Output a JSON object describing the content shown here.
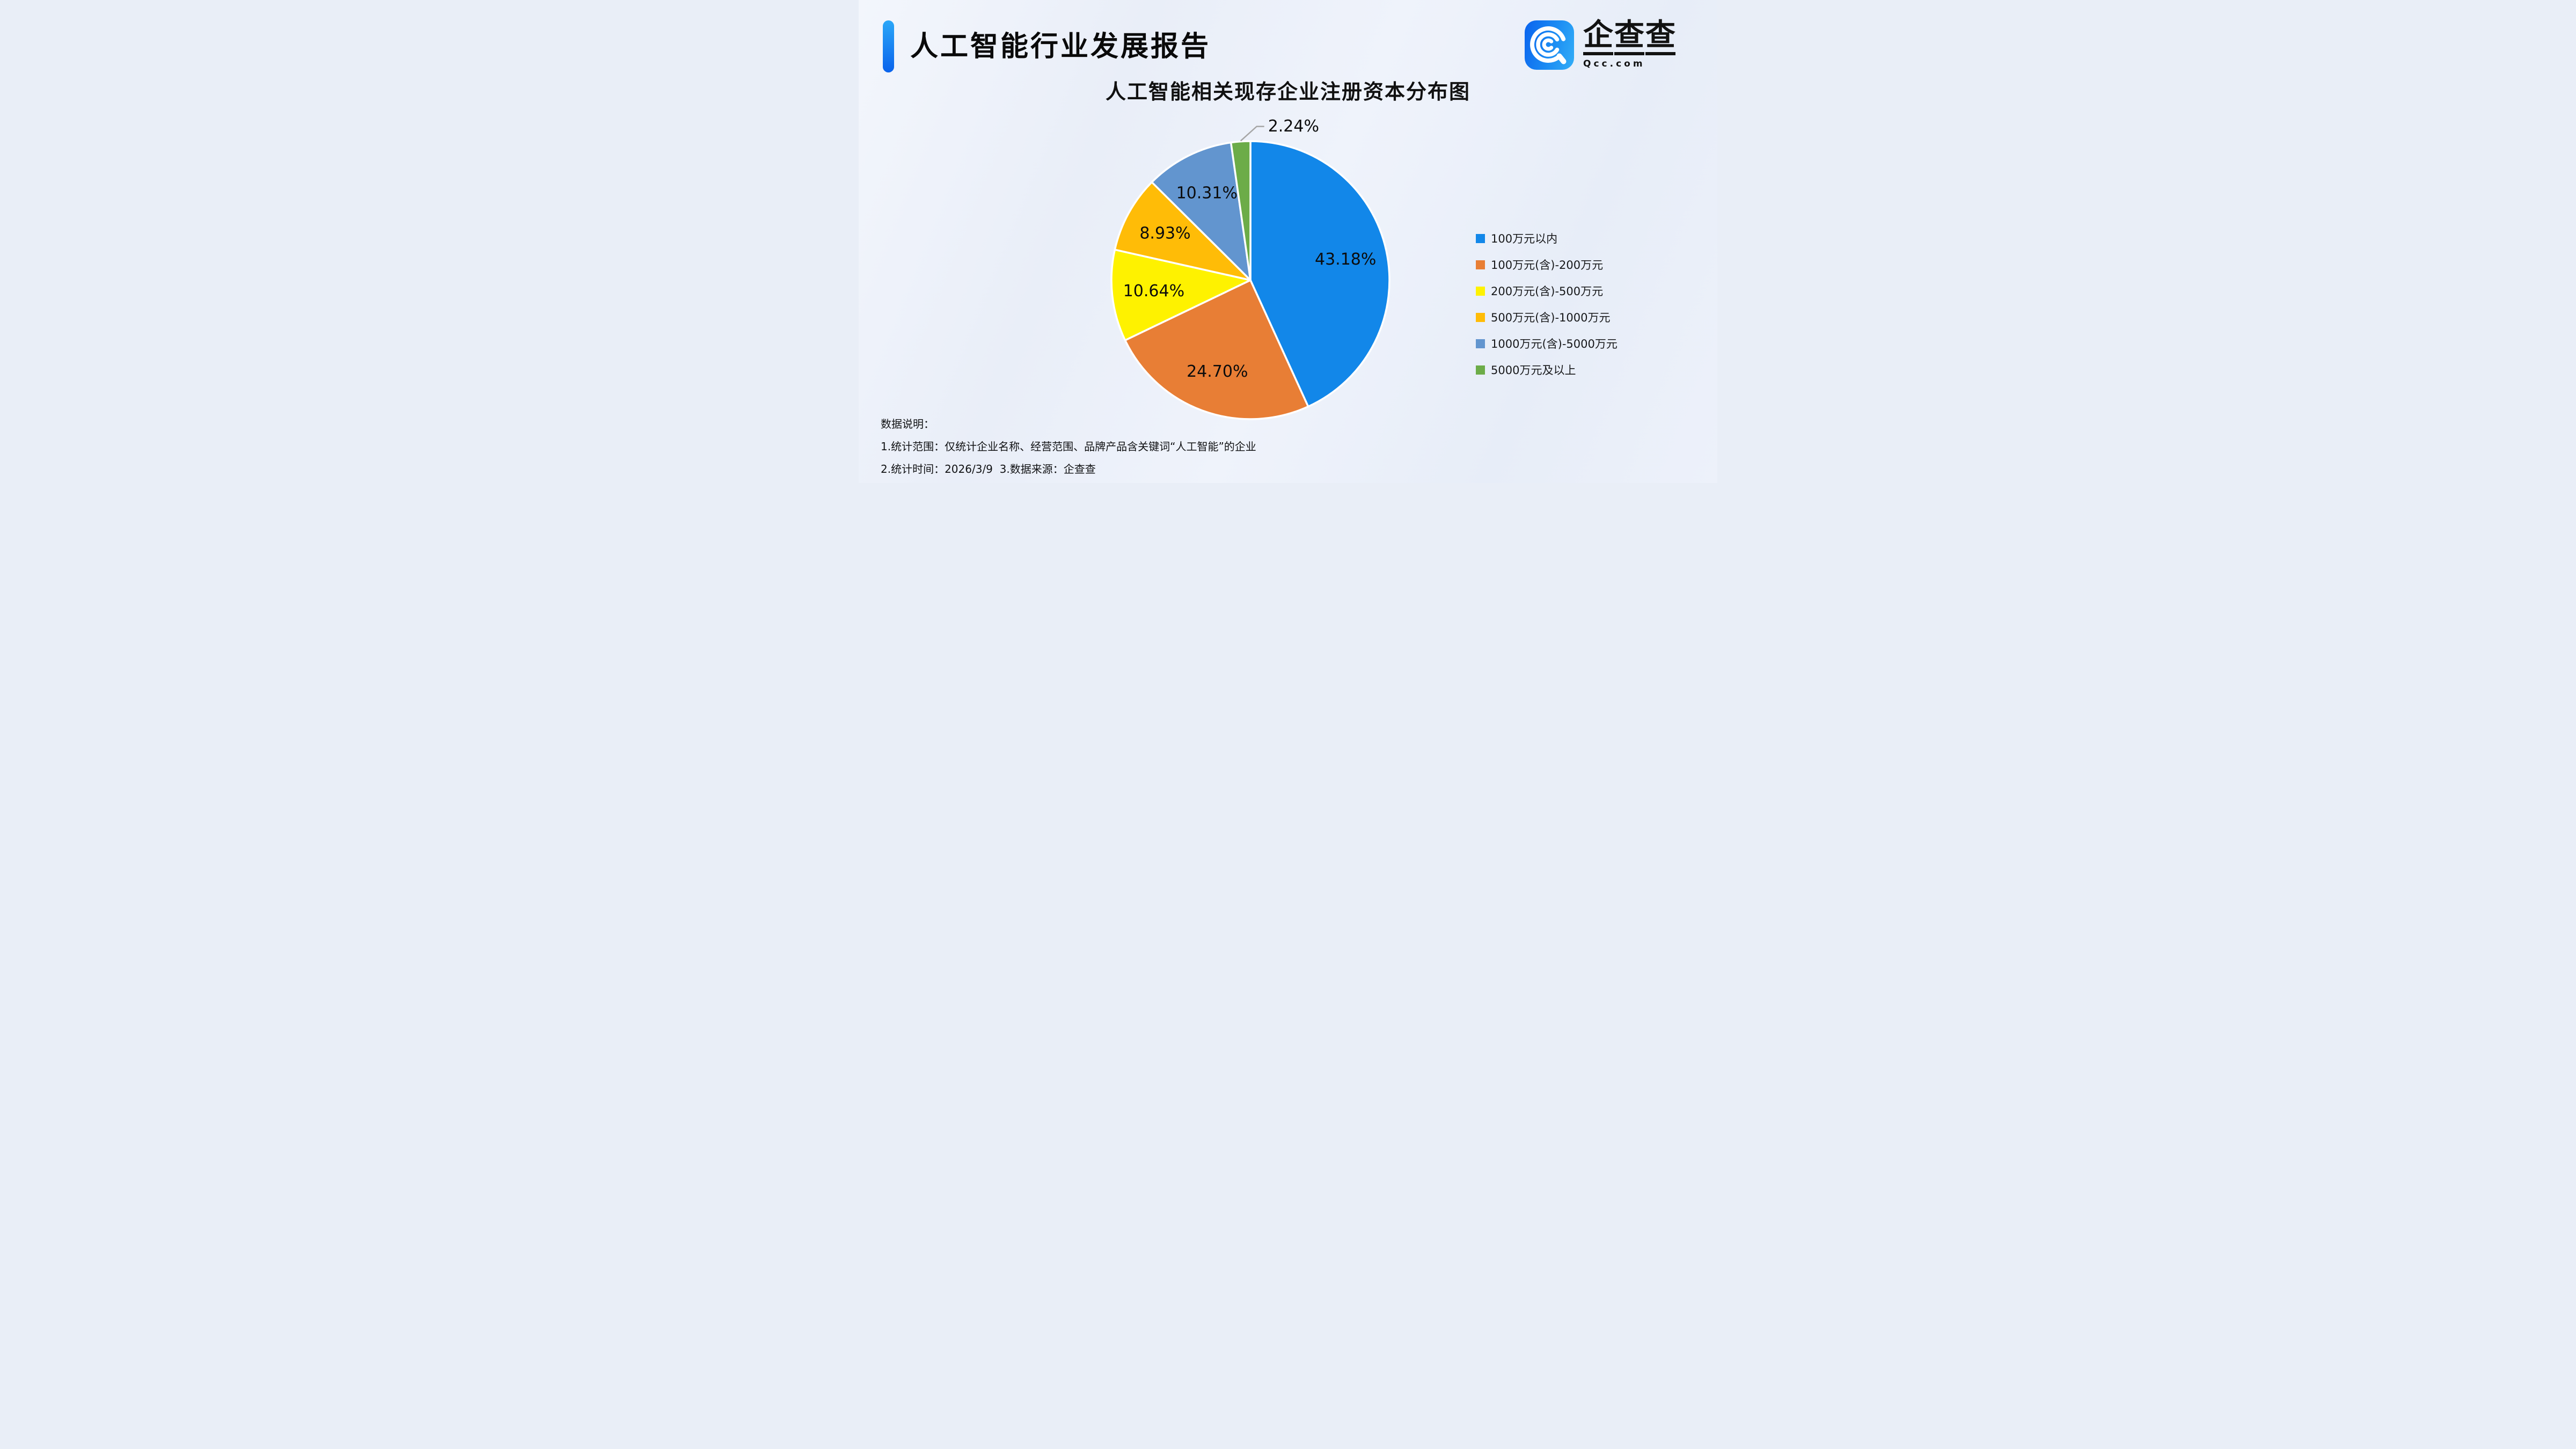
{
  "header": {
    "title": "人工智能行业发展报告"
  },
  "logo": {
    "chars": [
      "企",
      "查",
      "查"
    ],
    "domain": "Qcc.com",
    "icon": "qcc-magnifier-icon",
    "brand_blue": "#1b7bf2"
  },
  "chart_data": {
    "type": "pie",
    "title": "人工智能相关现存企业注册资本分布图",
    "label_format": "percent, 2 decimals",
    "legend_position": "right",
    "start_angle": "12 o'clock",
    "direction": "clockwise",
    "series": [
      {
        "label": "100万元以内",
        "value": 43.18,
        "color": "#1287e9"
      },
      {
        "label": "100万元(含)-200万元",
        "value": 24.7,
        "color": "#e87e35"
      },
      {
        "label": "200万元(含)-500万元",
        "value": 10.64,
        "color": "#fef200"
      },
      {
        "label": "500万元(含)-1000万元",
        "value": 8.93,
        "color": "#ffbc07"
      },
      {
        "label": "1000万元(含)-5000万元",
        "value": 10.31,
        "color": "#6295cf"
      },
      {
        "label": "5000万元及以上",
        "value": 2.24,
        "color": "#6cac48"
      }
    ],
    "leader_line_color": "#a6a6a6",
    "slice_gap_color": "#ffffff"
  },
  "footer": {
    "heading": "数据说明：",
    "line1": "1.统计范围：仅统计企业名称、经营范围、品牌产品含关键词“人工智能”的企业",
    "line2": "2.统计时间：2026/3/9  3.数据来源：企查查"
  }
}
